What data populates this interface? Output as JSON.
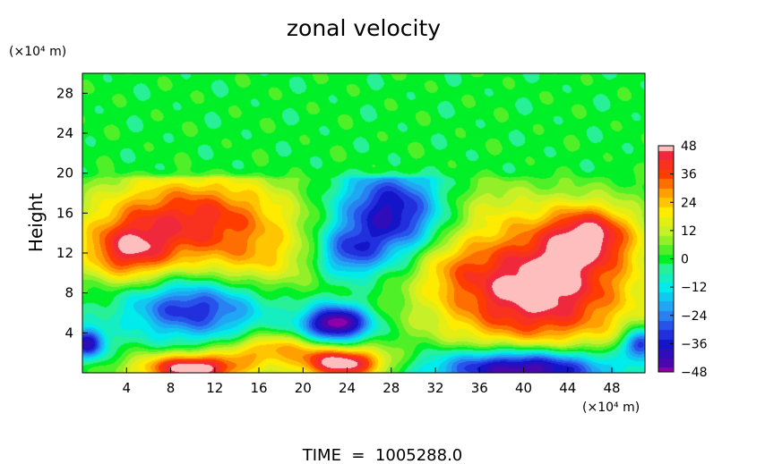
{
  "chart_data": {
    "type": "heatmap",
    "title": "zonal velocity",
    "xlabel": "",
    "ylabel": "Height",
    "x_unit_label": "(×10⁴ m)",
    "y_unit_label": "(×10⁴ m)",
    "xlim": [
      0,
      51
    ],
    "ylim": [
      0,
      30
    ],
    "x_ticks": [
      4,
      8,
      12,
      16,
      20,
      24,
      28,
      32,
      36,
      40,
      44,
      48
    ],
    "y_ticks": [
      4,
      8,
      12,
      16,
      20,
      24,
      28
    ],
    "colorbar": {
      "range": [
        -48,
        48
      ],
      "ticks": [
        48,
        36,
        24,
        12,
        0,
        -12,
        -24,
        -36,
        -48
      ],
      "tick_labels": [
        "48",
        "36",
        "24",
        "12",
        "0",
        "−12",
        "−24",
        "−36",
        "−48"
      ]
    },
    "footer": "TIME  =  1005288.0",
    "field_features": [
      {
        "kind": "ellipse",
        "x": 41,
        "y": 8.5,
        "rx": 9,
        "ry": 6.5,
        "value": 52
      },
      {
        "kind": "ellipse",
        "x": 10,
        "y": 15.5,
        "rx": 9,
        "ry": 4.5,
        "value": 40
      },
      {
        "kind": "ellipse",
        "x": 4,
        "y": 12,
        "rx": 4,
        "ry": 3,
        "value": 32
      },
      {
        "kind": "ellipse",
        "x": 28,
        "y": 16,
        "rx": 5,
        "ry": 4.5,
        "value": -42
      },
      {
        "kind": "ellipse",
        "x": 24,
        "y": 12,
        "rx": 3,
        "ry": 2.5,
        "value": -26
      },
      {
        "kind": "ellipse",
        "x": 10,
        "y": 6.5,
        "rx": 6,
        "ry": 3,
        "value": -34
      },
      {
        "kind": "ellipse",
        "x": 23,
        "y": 5,
        "rx": 3,
        "ry": 1.8,
        "value": -52
      },
      {
        "kind": "ellipse",
        "x": 40,
        "y": 0.5,
        "rx": 8,
        "ry": 2,
        "value": -56
      },
      {
        "kind": "ellipse",
        "x": 10,
        "y": 0.5,
        "rx": 5,
        "ry": 1.5,
        "value": 52
      },
      {
        "kind": "ellipse",
        "x": 23.5,
        "y": 1,
        "rx": 4,
        "ry": 1.6,
        "value": 52
      },
      {
        "kind": "ellipse",
        "x": 0.5,
        "y": 3,
        "rx": 1.5,
        "ry": 1.5,
        "value": -40
      },
      {
        "kind": "ellipse",
        "x": 50.5,
        "y": 3,
        "rx": 1.5,
        "ry": 1.5,
        "value": -40
      },
      {
        "kind": "ellipse",
        "x": 16,
        "y": 11,
        "rx": 6,
        "ry": 3,
        "value": 14
      },
      {
        "kind": "ellipse",
        "x": 33,
        "y": 11,
        "rx": 3,
        "ry": 3,
        "value": 10
      },
      {
        "kind": "ellipse",
        "x": 17,
        "y": 2.5,
        "rx": 4,
        "ry": 1.5,
        "value": 26
      },
      {
        "kind": "ellipse",
        "x": 46,
        "y": 14,
        "rx": 4,
        "ry": 3,
        "value": 34
      },
      {
        "kind": "ellipse",
        "x": 36,
        "y": 17,
        "rx": 5,
        "ry": 3,
        "value": 8
      }
    ]
  }
}
